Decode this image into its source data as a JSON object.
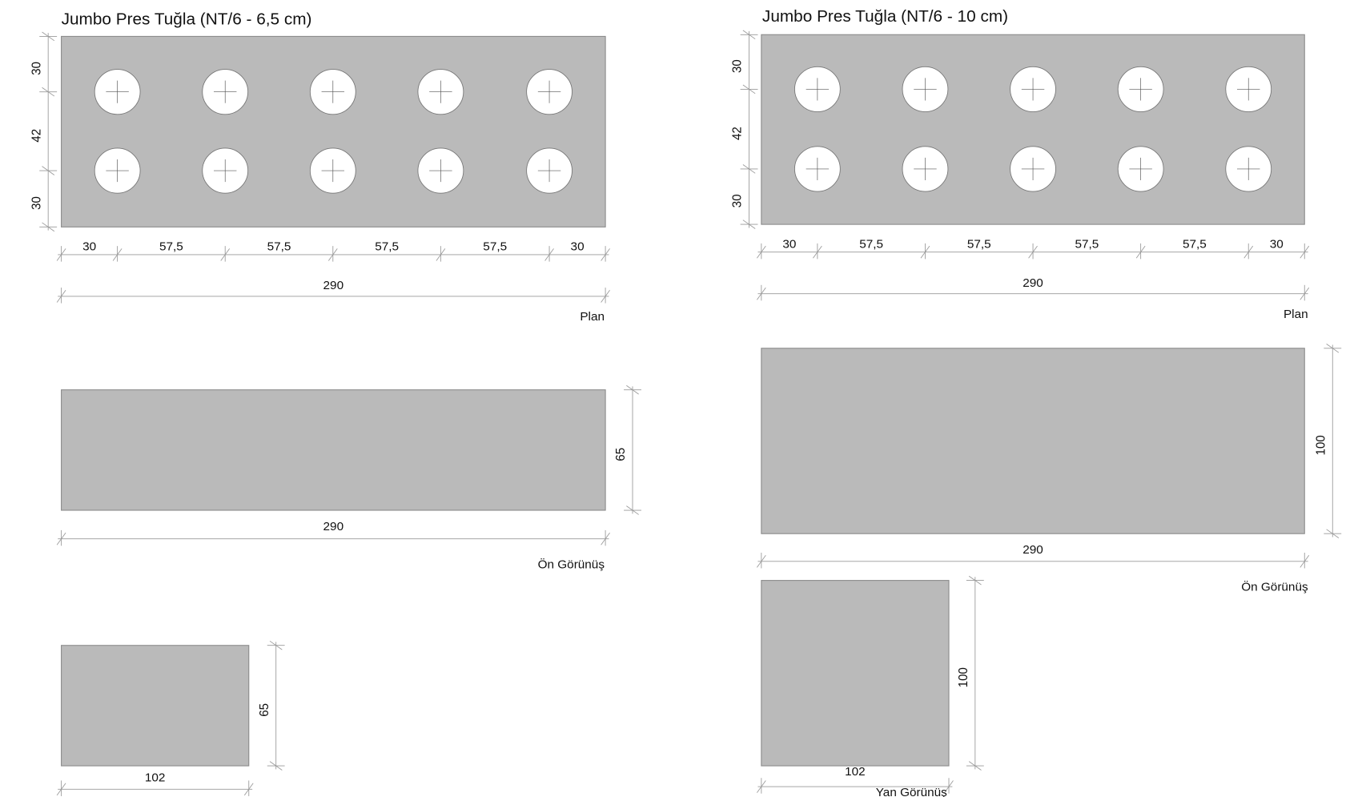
{
  "colors": {
    "brick_fill": "#bababa",
    "hole_fill": "#ffffff",
    "dimension_line": "#9a9a9a"
  },
  "drawings": [
    {
      "title": "Jumbo  Pres Tuğla (NT/6 - 6,5 cm)",
      "plan": {
        "label": "Plan",
        "holes_per_row": 5,
        "rows": 2,
        "vertical_dims": [
          "30",
          "42",
          "30"
        ],
        "horizontal_dims": [
          "30",
          "57,5",
          "57,5",
          "57,5",
          "57,5",
          "30"
        ],
        "total_length": "290"
      },
      "front": {
        "label": "Ön Görünüş",
        "height": "65",
        "length": "290"
      },
      "side": {
        "label": "",
        "height": "65",
        "width": "102"
      }
    },
    {
      "title": "Jumbo  Pres Tuğla (NT/6 - 10 cm)",
      "plan": {
        "label": "Plan",
        "holes_per_row": 5,
        "rows": 2,
        "vertical_dims": [
          "30",
          "42",
          "30"
        ],
        "horizontal_dims": [
          "30",
          "57,5",
          "57,5",
          "57,5",
          "57,5",
          "30"
        ],
        "total_length": "290"
      },
      "front": {
        "label": "Ön Görünüş",
        "height": "100",
        "length": "290"
      },
      "side": {
        "label": "Yan Görünüş",
        "height": "100",
        "width": "102"
      }
    }
  ]
}
